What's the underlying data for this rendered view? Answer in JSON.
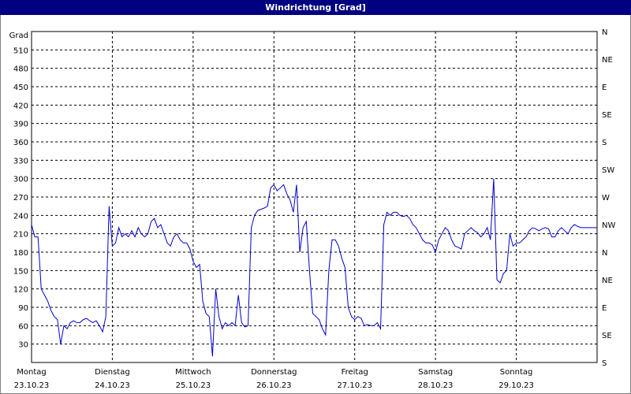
{
  "chart_data": {
    "type": "line",
    "title": "Windrichtung [Grad]",
    "ylabel": "Grad",
    "ylim": [
      0,
      540
    ],
    "yticks": [
      30,
      60,
      90,
      120,
      150,
      180,
      210,
      240,
      270,
      300,
      330,
      360,
      390,
      420,
      450,
      480,
      510
    ],
    "right_axis_labels": [
      "S",
      "SE",
      "E",
      "NE",
      "N",
      "NW",
      "W",
      "SW",
      "S",
      "SE",
      "E",
      "NE",
      "N"
    ],
    "x_days": [
      {
        "day": "Montag",
        "date": "23.10.23"
      },
      {
        "day": "Dienstag",
        "date": "24.10.23"
      },
      {
        "day": "Mittwoch",
        "date": "25.10.23"
      },
      {
        "day": "Donnerstag",
        "date": "26.10.23"
      },
      {
        "day": "Freitag",
        "date": "27.10.23"
      },
      {
        "day": "Samstag",
        "date": "28.10.23"
      },
      {
        "day": "Sonntag",
        "date": "29.10.23"
      }
    ],
    "grid": true,
    "series": [
      {
        "color": "#0000cc",
        "x": [
          0.0,
          0.04,
          0.08,
          0.12,
          0.16,
          0.2,
          0.24,
          0.28,
          0.32,
          0.36,
          0.4,
          0.44,
          0.48,
          0.52,
          0.56,
          0.6,
          0.64,
          0.68,
          0.72,
          0.76,
          0.8,
          0.84,
          0.88,
          0.92,
          0.96,
          1.0,
          1.04,
          1.08,
          1.12,
          1.16,
          1.2,
          1.24,
          1.28,
          1.32,
          1.36,
          1.4,
          1.44,
          1.48,
          1.52,
          1.56,
          1.6,
          1.64,
          1.68,
          1.72,
          1.76,
          1.8,
          1.84,
          1.88,
          1.92,
          1.96,
          2.0,
          2.04,
          2.08,
          2.12,
          2.16,
          2.2,
          2.24,
          2.28,
          2.32,
          2.36,
          2.4,
          2.44,
          2.48,
          2.52,
          2.56,
          2.6,
          2.64,
          2.68,
          2.72,
          2.76,
          2.8,
          2.84,
          2.88,
          2.92,
          2.96,
          3.0,
          3.04,
          3.08,
          3.12,
          3.16,
          3.2,
          3.24,
          3.28,
          3.32,
          3.36,
          3.4,
          3.44,
          3.48,
          3.52,
          3.56,
          3.6,
          3.64,
          3.68,
          3.72,
          3.76,
          3.8,
          3.84,
          3.88,
          3.92,
          3.96,
          4.0,
          4.04,
          4.08,
          4.12,
          4.16,
          4.2,
          4.24,
          4.28,
          4.32,
          4.36,
          4.4,
          4.44,
          4.48,
          4.52,
          4.56,
          4.6,
          4.64,
          4.68,
          4.72,
          4.76,
          4.8,
          4.84,
          4.88,
          4.92,
          4.96,
          5.0,
          5.04,
          5.08,
          5.12,
          5.16,
          5.2,
          5.24,
          5.28,
          5.32,
          5.36,
          5.4,
          5.44,
          5.48,
          5.52,
          5.56,
          5.6,
          5.64,
          5.68,
          5.72,
          5.76,
          5.8,
          5.84,
          5.88,
          5.92,
          5.96,
          6.0,
          6.04,
          6.08,
          6.12,
          6.16,
          6.2,
          6.24,
          6.28,
          6.32,
          6.36,
          6.4,
          6.44,
          6.48,
          6.52,
          6.56,
          6.6,
          6.64,
          6.68,
          6.72,
          6.76,
          6.8,
          6.84,
          6.88,
          6.92,
          6.96,
          7.0
        ],
        "y": [
          225,
          205,
          205,
          120,
          110,
          100,
          85,
          75,
          70,
          30,
          60,
          55,
          65,
          68,
          65,
          65,
          70,
          72,
          68,
          65,
          68,
          60,
          50,
          75,
          255,
          190,
          195,
          220,
          205,
          210,
          205,
          215,
          205,
          220,
          210,
          205,
          210,
          230,
          235,
          220,
          225,
          210,
          195,
          190,
          205,
          210,
          200,
          195,
          195,
          185,
          165,
          155,
          160,
          100,
          80,
          75,
          10,
          120,
          75,
          55,
          65,
          60,
          65,
          60,
          110,
          65,
          58,
          60,
          220,
          240,
          248,
          250,
          252,
          255,
          285,
          290,
          280,
          285,
          290,
          275,
          265,
          245,
          290,
          180,
          220,
          230,
          150,
          80,
          75,
          70,
          55,
          45,
          150,
          200,
          200,
          190,
          170,
          155,
          90,
          75,
          70,
          75,
          72,
          60,
          62,
          60,
          60,
          65,
          55,
          225,
          245,
          240,
          245,
          245,
          240,
          238,
          240,
          235,
          225,
          220,
          210,
          200,
          195,
          195,
          192,
          180,
          200,
          210,
          220,
          215,
          200,
          190,
          188,
          185,
          210,
          215,
          220,
          215,
          212,
          205,
          210,
          220,
          200,
          300,
          135,
          130,
          145,
          150,
          210,
          190,
          195,
          195,
          200,
          205,
          215,
          220,
          218,
          215,
          218,
          220,
          218,
          205,
          205,
          215,
          220,
          215,
          210,
          220,
          225,
          222,
          220,
          220,
          220,
          220,
          220,
          220
        ]
      }
    ]
  }
}
